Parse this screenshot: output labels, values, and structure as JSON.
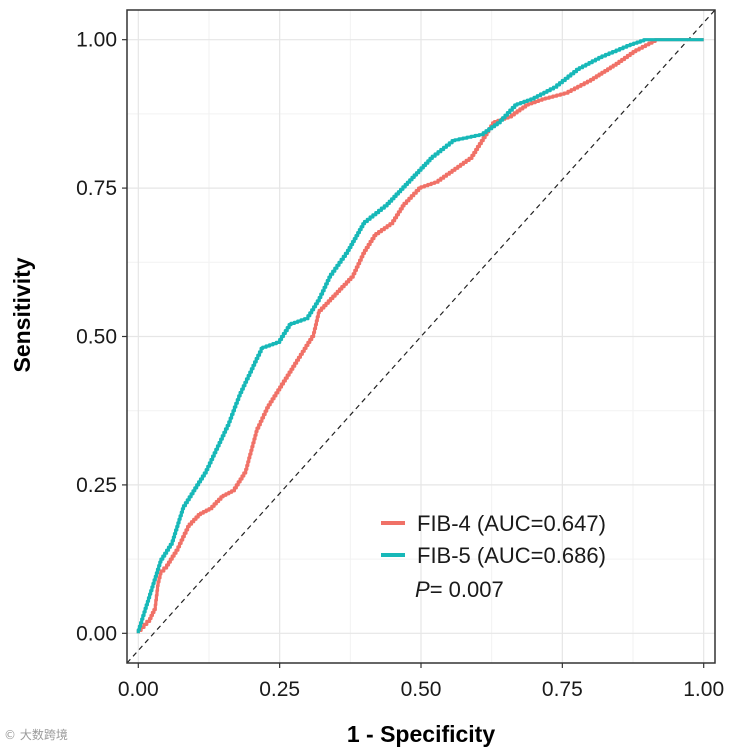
{
  "chart_data": {
    "type": "line",
    "title": "",
    "xlabel": "1 - Specificity",
    "ylabel": "Sensitivity",
    "xlim": [
      -0.02,
      1.02
    ],
    "ylim": [
      -0.05,
      1.05
    ],
    "x_ticks": [
      0,
      0.25,
      0.5,
      0.75,
      1
    ],
    "x_tick_labels": [
      "0.00",
      "0.25",
      "0.50",
      "0.75",
      "1.00"
    ],
    "y_ticks": [
      0,
      0.25,
      0.5,
      0.75,
      1
    ],
    "y_tick_labels": [
      "0.00",
      "0.25",
      "0.50",
      "0.75",
      "1.00"
    ],
    "grid": true,
    "legend_position": "bottom-right",
    "reference_line": {
      "from": [
        0,
        0
      ],
      "to": [
        1,
        1
      ],
      "style": "dashed"
    },
    "series": [
      {
        "name": "FIB-4 (AUC=0.647)",
        "color": "#F07167",
        "points": [
          [
            0,
            0
          ],
          [
            0.01,
            0.01
          ],
          [
            0.02,
            0.02
          ],
          [
            0.03,
            0.04
          ],
          [
            0.035,
            0.08
          ],
          [
            0.04,
            0.1
          ],
          [
            0.05,
            0.11
          ],
          [
            0.07,
            0.14
          ],
          [
            0.09,
            0.18
          ],
          [
            0.11,
            0.2
          ],
          [
            0.13,
            0.21
          ],
          [
            0.15,
            0.23
          ],
          [
            0.17,
            0.24
          ],
          [
            0.19,
            0.27
          ],
          [
            0.21,
            0.34
          ],
          [
            0.23,
            0.38
          ],
          [
            0.25,
            0.41
          ],
          [
            0.27,
            0.44
          ],
          [
            0.29,
            0.47
          ],
          [
            0.31,
            0.5
          ],
          [
            0.32,
            0.54
          ],
          [
            0.34,
            0.56
          ],
          [
            0.36,
            0.58
          ],
          [
            0.38,
            0.6
          ],
          [
            0.4,
            0.64
          ],
          [
            0.42,
            0.67
          ],
          [
            0.45,
            0.69
          ],
          [
            0.47,
            0.72
          ],
          [
            0.5,
            0.75
          ],
          [
            0.53,
            0.76
          ],
          [
            0.56,
            0.78
          ],
          [
            0.59,
            0.8
          ],
          [
            0.61,
            0.83
          ],
          [
            0.63,
            0.86
          ],
          [
            0.66,
            0.87
          ],
          [
            0.69,
            0.89
          ],
          [
            0.72,
            0.9
          ],
          [
            0.76,
            0.91
          ],
          [
            0.8,
            0.93
          ],
          [
            0.85,
            0.96
          ],
          [
            0.88,
            0.98
          ],
          [
            0.92,
            1.0
          ],
          [
            1.0,
            1.0
          ]
        ]
      },
      {
        "name": "FIB-5 (AUC=0.686)",
        "color": "#17B8B8",
        "points": [
          [
            0,
            0
          ],
          [
            0.01,
            0.03
          ],
          [
            0.02,
            0.06
          ],
          [
            0.03,
            0.09
          ],
          [
            0.04,
            0.12
          ],
          [
            0.06,
            0.15
          ],
          [
            0.07,
            0.18
          ],
          [
            0.08,
            0.21
          ],
          [
            0.1,
            0.24
          ],
          [
            0.12,
            0.27
          ],
          [
            0.14,
            0.31
          ],
          [
            0.16,
            0.35
          ],
          [
            0.18,
            0.4
          ],
          [
            0.2,
            0.44
          ],
          [
            0.22,
            0.48
          ],
          [
            0.25,
            0.49
          ],
          [
            0.27,
            0.52
          ],
          [
            0.3,
            0.53
          ],
          [
            0.32,
            0.56
          ],
          [
            0.34,
            0.6
          ],
          [
            0.37,
            0.64
          ],
          [
            0.4,
            0.69
          ],
          [
            0.44,
            0.72
          ],
          [
            0.48,
            0.76
          ],
          [
            0.52,
            0.8
          ],
          [
            0.56,
            0.83
          ],
          [
            0.61,
            0.84
          ],
          [
            0.64,
            0.86
          ],
          [
            0.67,
            0.89
          ],
          [
            0.7,
            0.9
          ],
          [
            0.74,
            0.92
          ],
          [
            0.78,
            0.95
          ],
          [
            0.82,
            0.97
          ],
          [
            0.87,
            0.99
          ],
          [
            0.9,
            1.0
          ],
          [
            1.0,
            1.0
          ]
        ]
      }
    ],
    "annotations": {
      "p_label": "P",
      "p_value": "= 0.007"
    }
  },
  "watermark": "© 大数跨境"
}
